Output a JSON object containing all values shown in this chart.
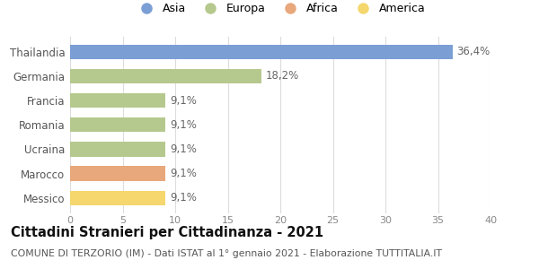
{
  "categories": [
    "Messico",
    "Marocco",
    "Ucraina",
    "Romania",
    "Francia",
    "Germania",
    "Thailandia"
  ],
  "values": [
    9.1,
    9.1,
    9.1,
    9.1,
    9.1,
    18.2,
    36.4
  ],
  "labels": [
    "9,1%",
    "9,1%",
    "9,1%",
    "9,1%",
    "9,1%",
    "18,2%",
    "36,4%"
  ],
  "colors": [
    "#f5d76e",
    "#e8a87c",
    "#b5c98e",
    "#b5c98e",
    "#b5c98e",
    "#b5c98e",
    "#7b9fd4"
  ],
  "legend": [
    {
      "label": "Asia",
      "color": "#7b9fd4"
    },
    {
      "label": "Europa",
      "color": "#b5c98e"
    },
    {
      "label": "Africa",
      "color": "#e8a87c"
    },
    {
      "label": "America",
      "color": "#f5d76e"
    }
  ],
  "xlim": [
    0,
    40
  ],
  "xticks": [
    0,
    5,
    10,
    15,
    20,
    25,
    30,
    35,
    40
  ],
  "title": "Cittadini Stranieri per Cittadinanza - 2021",
  "subtitle": "COMUNE DI TERZORIO (IM) - Dati ISTAT al 1° gennaio 2021 - Elaborazione TUTTITALIA.IT",
  "background_color": "#ffffff",
  "bar_height": 0.6,
  "label_fontsize": 8.5,
  "ytick_fontsize": 8.5,
  "xtick_fontsize": 8,
  "title_fontsize": 10.5,
  "subtitle_fontsize": 7.8,
  "legend_fontsize": 9
}
